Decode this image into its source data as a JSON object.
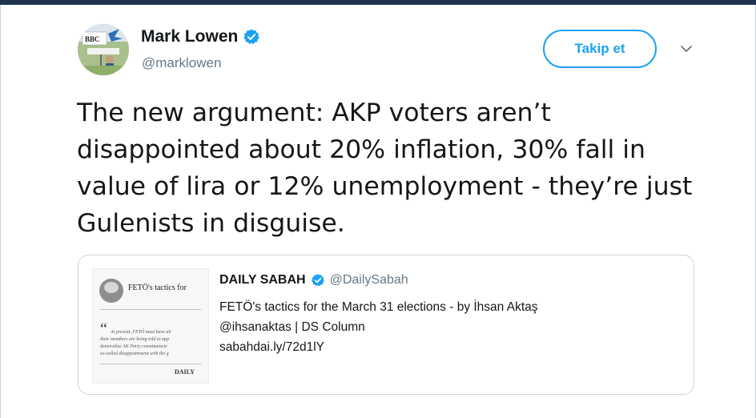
{
  "tweet": {
    "author_name": "Mark Lowen",
    "author_handle": "@marklowen",
    "follow_label": "Takip et",
    "text": "The new argument: AKP voters aren’t disappointed about 20% inflation, 30% fall in value of lira or 12% unemployment - they’re just Gulenists in disguise.",
    "avatar_text": "BBC"
  },
  "quoted": {
    "author_name": "DAILY SABAH",
    "author_handle": "@DailySabah",
    "line1": "FETÖ's tactics for the March 31 elections - by İhsan Aktaş",
    "line2": "@ihsanaktas | DS Column",
    "line3": "sabahdai.ly/72d1lY",
    "thumbnail": {
      "title": "FETÖ's tactics for",
      "quote_mark": "“",
      "lines": [
        "At present, FETÖ must have alr",
        "their members are being told to app",
        "demoralize AK Party constituencie",
        "so-called disappointment with the g"
      ],
      "footer": "DAILY"
    }
  },
  "colors": {
    "accent": "#1da1f2",
    "text": "#14171a",
    "muted": "#657786",
    "border": "#ccd6dd",
    "topbar": "#1f3350"
  },
  "icons": {
    "verified": "verified-badge-icon",
    "chevron": "chevron-down-icon"
  }
}
